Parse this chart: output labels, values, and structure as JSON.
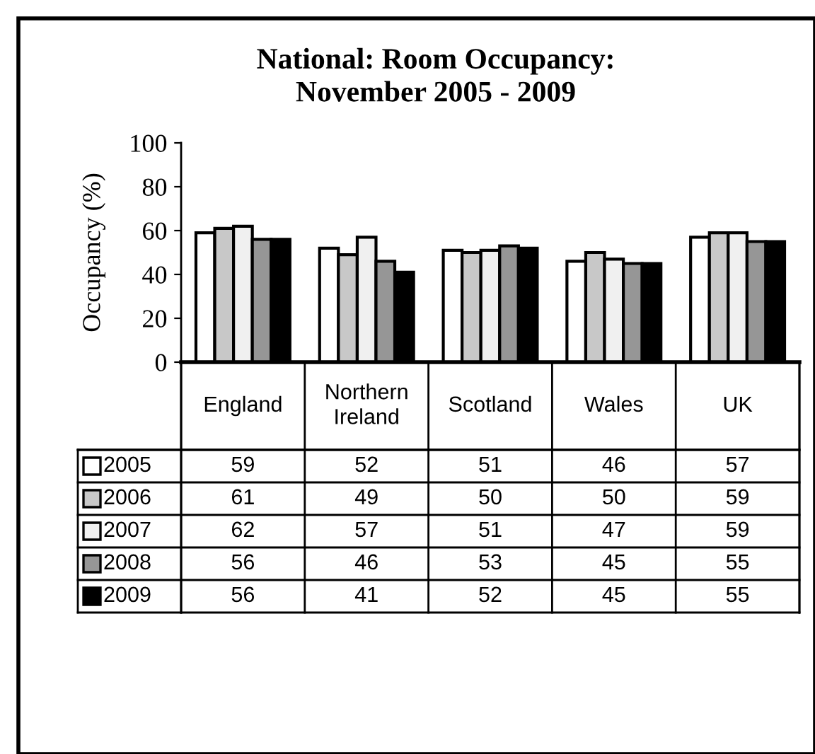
{
  "chart_data": {
    "type": "bar",
    "title": "National: Room Occupancy:\nNovember 2005 - 2009",
    "ylabel": "Occupancy (%)",
    "categories": [
      "England",
      "Northern\nIreland",
      "Scotland",
      "Wales",
      "UK"
    ],
    "series": [
      {
        "name": "2005",
        "color": "#ffffff",
        "values": [
          59,
          52,
          51,
          46,
          57
        ]
      },
      {
        "name": "2006",
        "color": "#c8c8c8",
        "values": [
          61,
          49,
          50,
          50,
          59
        ]
      },
      {
        "name": "2007",
        "color": "#f0f0f0",
        "values": [
          62,
          57,
          51,
          47,
          59
        ]
      },
      {
        "name": "2008",
        "color": "#969696",
        "values": [
          56,
          46,
          53,
          45,
          55
        ]
      },
      {
        "name": "2009",
        "color": "#000000",
        "values": [
          56,
          41,
          52,
          45,
          55
        ]
      }
    ],
    "ylim": [
      0,
      100
    ],
    "yticks": [
      0,
      20,
      40,
      60,
      80,
      100
    ],
    "grid": false,
    "legend": "bottom left",
    "data_labels": true
  }
}
